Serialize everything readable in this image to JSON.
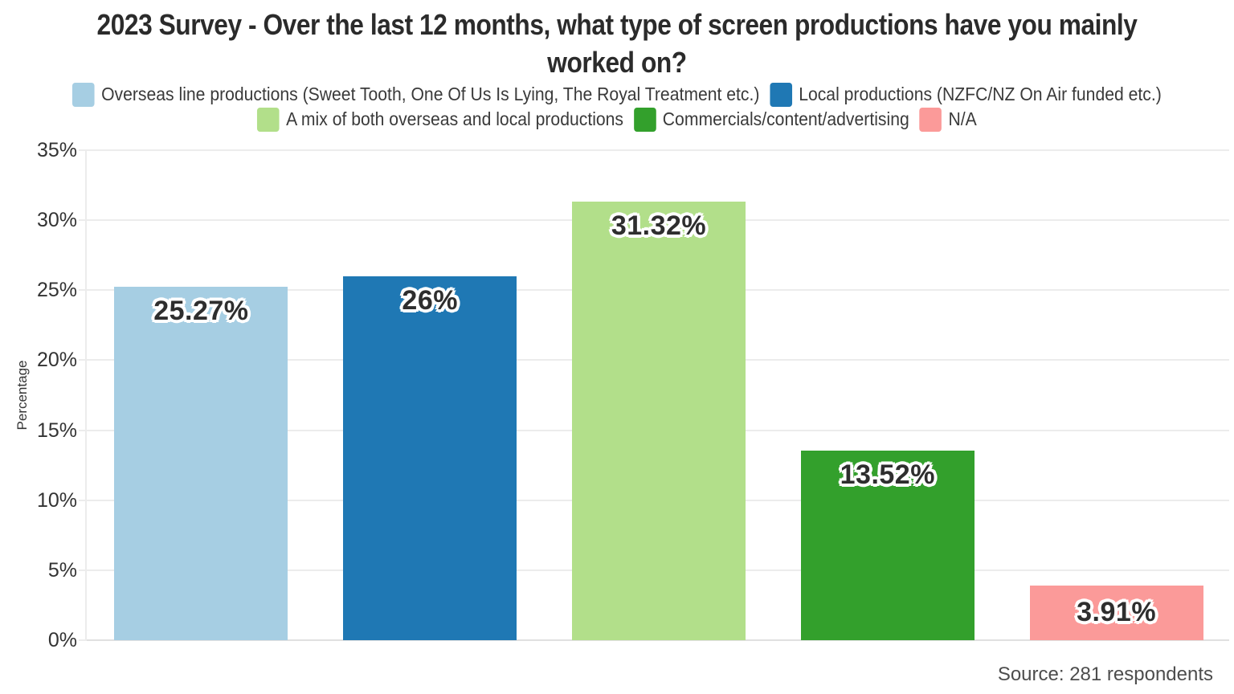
{
  "title_display": "2023 Survey - Over the last 12 months, what type of screen productions have you mainly\nworked on?",
  "source_note": "Source: 281 respondents",
  "colors": {
    "background": "#ffffff",
    "title_text": "#2b2b2b",
    "legend_text": "#3a3a3a",
    "axis_text": "#333333",
    "gridline": "#ececec",
    "baseline": "#e0e0e0",
    "bar_label_text": "#2e2e2e",
    "bar_label_outline": "#ffffff",
    "source_text": "#4d4d4d"
  },
  "chart_data": {
    "type": "bar",
    "title": "2023 Survey - Over the last 12 months, what type of screen productions have you mainly worked on?",
    "categories": [
      "Overseas line productions (Sweet Tooth, One Of Us Is Lying, The Royal Treatment etc.)",
      "Local productions (NZFC/NZ On Air funded etc.)",
      "A mix of both overseas and local productions",
      "Commercials/content/advertising",
      "N/A"
    ],
    "values": [
      25.27,
      26,
      31.32,
      13.52,
      3.91
    ],
    "value_labels": [
      "25.27%",
      "26%",
      "31.32%",
      "13.52%",
      "3.91%"
    ],
    "bar_colors": [
      "#A6CEE3",
      "#1F78B4",
      "#B2DF8A",
      "#33A02C",
      "#FB9A99"
    ],
    "xlabel": "",
    "ylabel": "Percentage",
    "ylim": [
      0,
      35
    ],
    "yticks": [
      "0%",
      "5%",
      "10%",
      "15%",
      "20%",
      "25%",
      "30%",
      "35%"
    ],
    "grid": true,
    "legend_position": "top",
    "legend_rows": [
      [
        0,
        1
      ],
      [
        2,
        3,
        4
      ]
    ]
  }
}
